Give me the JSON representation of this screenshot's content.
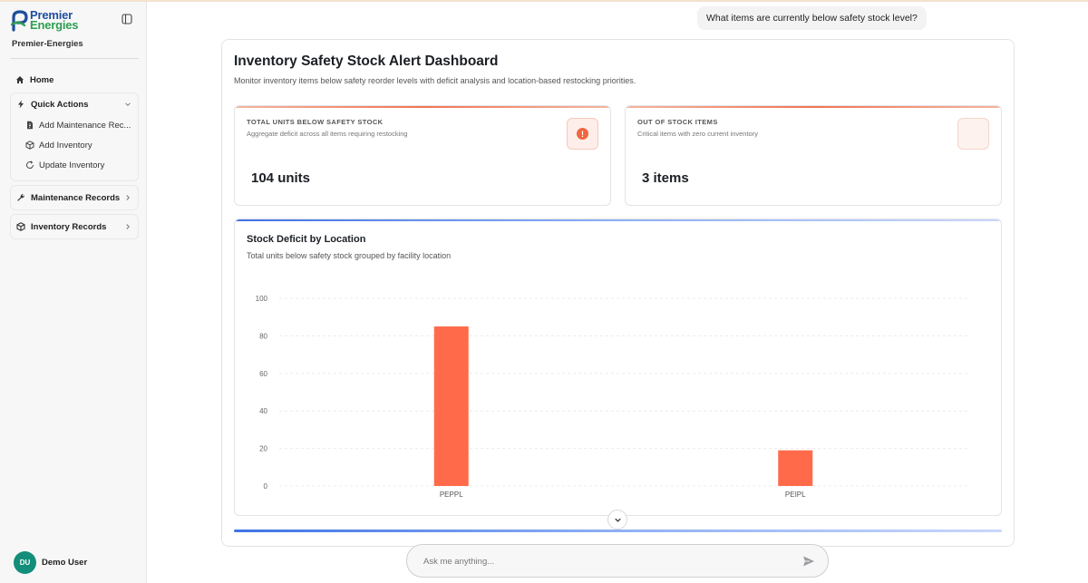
{
  "brand": {
    "line1": "Premier",
    "line2": "Energies",
    "org": "Premier-Energies"
  },
  "sidebar": {
    "home": "Home",
    "quick_actions": {
      "label": "Quick Actions",
      "items": [
        "Add Maintenance Rec...",
        "Add Inventory",
        "Update Inventory"
      ]
    },
    "maintenance_records": "Maintenance Records",
    "inventory_records": "Inventory Records"
  },
  "user": {
    "initials": "DU",
    "name": "Demo User"
  },
  "chat": {
    "user_message": "What items are currently below safety stock level?",
    "input_placeholder": "Ask me anything..."
  },
  "dashboard": {
    "title": "Inventory Safety Stock Alert Dashboard",
    "subtitle": "Monitor inventory items below safety reorder levels with deficit analysis and location-based restocking priorities.",
    "stats": [
      {
        "label": "TOTAL UNITS BELOW SAFETY STOCK",
        "desc": "Aggregate deficit across all items requiring restocking",
        "value": "104 units",
        "icon": "alert-icon"
      },
      {
        "label": "OUT OF STOCK ITEMS",
        "desc": "Critical items with zero current inventory",
        "value": "3 items",
        "icon": ""
      }
    ]
  },
  "chart_data": {
    "type": "bar",
    "title": "Stock Deficit by Location",
    "subtitle": "Total units below safety stock grouped by facility location",
    "categories": [
      "PEPPL",
      "PEIPL"
    ],
    "values": [
      85,
      19
    ],
    "yticks": [
      0,
      20,
      40,
      60,
      80,
      100
    ],
    "ylim": [
      0,
      100
    ],
    "xlabel": "",
    "ylabel": "",
    "grid": true,
    "bar_color": "#ff6b4a"
  }
}
